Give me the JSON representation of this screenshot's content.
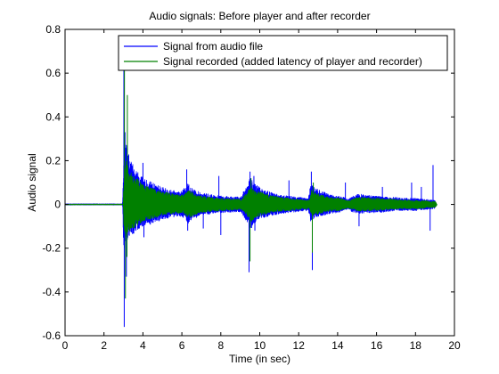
{
  "chart_data": {
    "type": "line",
    "title": "Audio signals: Before player and after recorder",
    "xlabel": "Time (in sec)",
    "ylabel": "Audio signal",
    "xlim": [
      0,
      20
    ],
    "ylim": [
      -0.6,
      0.8
    ],
    "xticks": [
      0,
      2,
      4,
      6,
      8,
      10,
      12,
      14,
      16,
      18,
      20
    ],
    "xtick_labels": [
      "0",
      "2",
      "4",
      "6",
      "8",
      "10",
      "12",
      "14",
      "16",
      "18",
      "20"
    ],
    "yticks": [
      -0.6,
      -0.4,
      -0.2,
      0,
      0.2,
      0.4,
      0.6,
      0.8
    ],
    "ytick_labels": [
      "-0.6",
      "-0.4",
      "-0.2",
      "0",
      "0.2",
      "0.4",
      "0.6",
      "0.8"
    ],
    "grid": false,
    "legend_position": "top-right",
    "series": [
      {
        "name": "Signal from audio file",
        "color": "#0000ff",
        "envelope": {
          "t": [
            0,
            2.95,
            3.0,
            3.05,
            3.1,
            3.3,
            3.6,
            4.0,
            4.5,
            5.0,
            5.5,
            6.0,
            6.3,
            6.6,
            7.0,
            8.0,
            9.0,
            9.4,
            9.5,
            9.7,
            10.0,
            10.5,
            11.0,
            11.5,
            12.0,
            12.5,
            12.6,
            12.7,
            13.0,
            13.5,
            14.0,
            14.3,
            14.5,
            15.0,
            15.5,
            16.0,
            16.5,
            17.0,
            17.5,
            18.0,
            18.5,
            19.0,
            19.05
          ],
          "upper": [
            0.004,
            0.004,
            0.2,
            0.2,
            0.3,
            0.22,
            0.17,
            0.12,
            0.1,
            0.08,
            0.065,
            0.06,
            0.1,
            0.07,
            0.055,
            0.04,
            0.035,
            0.1,
            0.13,
            0.1,
            0.08,
            0.06,
            0.045,
            0.04,
            0.035,
            0.03,
            0.1,
            0.09,
            0.07,
            0.05,
            0.04,
            0.035,
            0.025,
            0.05,
            0.045,
            0.04,
            0.035,
            0.035,
            0.03,
            0.03,
            0.025,
            0.02,
            0.0
          ],
          "lower": [
            -0.004,
            -0.004,
            -0.2,
            -0.2,
            -0.18,
            -0.15,
            -0.13,
            -0.1,
            -0.09,
            -0.07,
            -0.06,
            -0.055,
            -0.09,
            -0.07,
            -0.05,
            -0.04,
            -0.035,
            -0.09,
            -0.12,
            -0.09,
            -0.07,
            -0.055,
            -0.045,
            -0.04,
            -0.035,
            -0.03,
            -0.08,
            -0.07,
            -0.06,
            -0.045,
            -0.04,
            -0.03,
            -0.025,
            -0.045,
            -0.04,
            -0.04,
            -0.035,
            -0.03,
            -0.03,
            -0.03,
            -0.025,
            -0.02,
            0.0
          ]
        },
        "spikes": [
          [
            3.02,
            0.68
          ],
          [
            3.04,
            -0.56
          ],
          [
            3.15,
            -0.33
          ],
          [
            3.08,
            0.33
          ],
          [
            4.0,
            0.19
          ],
          [
            4.05,
            -0.15
          ],
          [
            6.25,
            0.16
          ],
          [
            6.3,
            -0.12
          ],
          [
            7.1,
            -0.11
          ],
          [
            7.9,
            0.13
          ],
          [
            8.0,
            -0.14
          ],
          [
            9.5,
            0.15
          ],
          [
            9.45,
            -0.31
          ],
          [
            9.7,
            0.13
          ],
          [
            9.75,
            -0.12
          ],
          [
            11.5,
            0.11
          ],
          [
            12.65,
            0.15
          ],
          [
            12.7,
            -0.3
          ],
          [
            14.4,
            0.1
          ],
          [
            15.1,
            -0.1
          ],
          [
            16.3,
            0.08
          ],
          [
            17.8,
            0.1
          ],
          [
            18.3,
            0.08
          ],
          [
            18.9,
            0.18
          ],
          [
            18.75,
            -0.12
          ]
        ]
      },
      {
        "name": "Signal recorded (added latency of player and recorder)",
        "color": "#008000",
        "envelope": {
          "t": [
            0,
            2.98,
            3.03,
            3.08,
            3.13,
            3.35,
            3.65,
            4.05,
            4.55,
            5.05,
            5.55,
            6.05,
            6.35,
            6.65,
            7.05,
            8.05,
            9.05,
            9.45,
            9.55,
            9.75,
            10.05,
            10.55,
            11.05,
            11.55,
            12.05,
            12.55,
            12.65,
            12.75,
            13.05,
            13.55,
            14.05,
            14.35,
            14.55,
            15.05,
            15.55,
            16.05,
            16.55,
            17.05,
            17.55,
            18.05,
            18.55,
            19.05,
            19.1
          ],
          "upper": [
            0.003,
            0.003,
            0.15,
            0.16,
            0.2,
            0.16,
            0.13,
            0.09,
            0.075,
            0.06,
            0.05,
            0.045,
            0.07,
            0.05,
            0.04,
            0.03,
            0.025,
            0.07,
            0.09,
            0.07,
            0.06,
            0.045,
            0.035,
            0.03,
            0.025,
            0.022,
            0.07,
            0.06,
            0.05,
            0.035,
            0.03,
            0.025,
            0.018,
            0.035,
            0.032,
            0.03,
            0.026,
            0.025,
            0.022,
            0.02,
            0.018,
            0.015,
            0.0
          ],
          "lower": [
            -0.003,
            -0.003,
            -0.15,
            -0.16,
            -0.15,
            -0.12,
            -0.1,
            -0.075,
            -0.065,
            -0.05,
            -0.045,
            -0.04,
            -0.065,
            -0.05,
            -0.038,
            -0.03,
            -0.025,
            -0.065,
            -0.085,
            -0.065,
            -0.052,
            -0.04,
            -0.033,
            -0.03,
            -0.025,
            -0.022,
            -0.06,
            -0.05,
            -0.045,
            -0.033,
            -0.03,
            -0.022,
            -0.018,
            -0.033,
            -0.03,
            -0.03,
            -0.026,
            -0.022,
            -0.022,
            -0.022,
            -0.018,
            -0.015,
            0.0
          ]
        },
        "spikes": [
          [
            3.05,
            0.62
          ],
          [
            3.1,
            -0.43
          ],
          [
            3.2,
            0.5
          ],
          [
            3.18,
            -0.24
          ],
          [
            9.5,
            -0.26
          ],
          [
            9.55,
            0.12
          ],
          [
            12.7,
            -0.22
          ],
          [
            12.75,
            0.1
          ]
        ]
      }
    ]
  }
}
